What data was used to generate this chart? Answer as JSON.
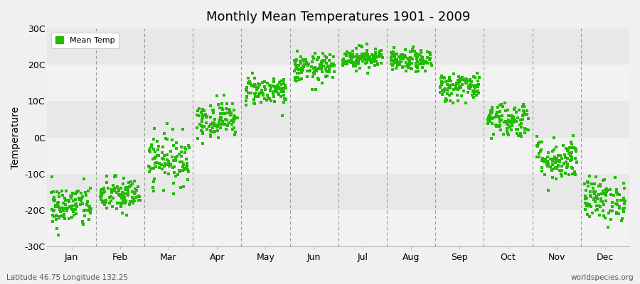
{
  "title": "Monthly Mean Temperatures 1901 - 2009",
  "ylabel": "Temperature",
  "ylim": [
    -30,
    30
  ],
  "yticks": [
    -30,
    -20,
    -10,
    0,
    10,
    20,
    30
  ],
  "ytick_labels": [
    "-30C",
    "-20C",
    "-10C",
    "0C",
    "10C",
    "20C",
    "30C"
  ],
  "months": [
    "Jan",
    "Feb",
    "Mar",
    "Apr",
    "May",
    "Jun",
    "Jul",
    "Aug",
    "Sep",
    "Oct",
    "Nov",
    "Dec"
  ],
  "dot_color": "#22bb00",
  "background_color": "#f0f0f0",
  "band_colors": [
    "#f2f2f2",
    "#e8e8e8",
    "#f2f2f2",
    "#e8e8e8",
    "#f2f2f2",
    "#e8e8e8"
  ],
  "legend_label": "Mean Temp",
  "footer_left": "Latitude 46.75 Longitude 132.25",
  "footer_right": "worldspecies.org",
  "monthly_mean_temps": [
    -19,
    -16,
    -6,
    5,
    13,
    19,
    22,
    21,
    14,
    5,
    -6,
    -17
  ],
  "monthly_spread": [
    3.0,
    2.5,
    3.5,
    2.5,
    2.0,
    2.0,
    1.5,
    1.5,
    2.0,
    2.5,
    3.0,
    3.0
  ],
  "n_years": 109
}
